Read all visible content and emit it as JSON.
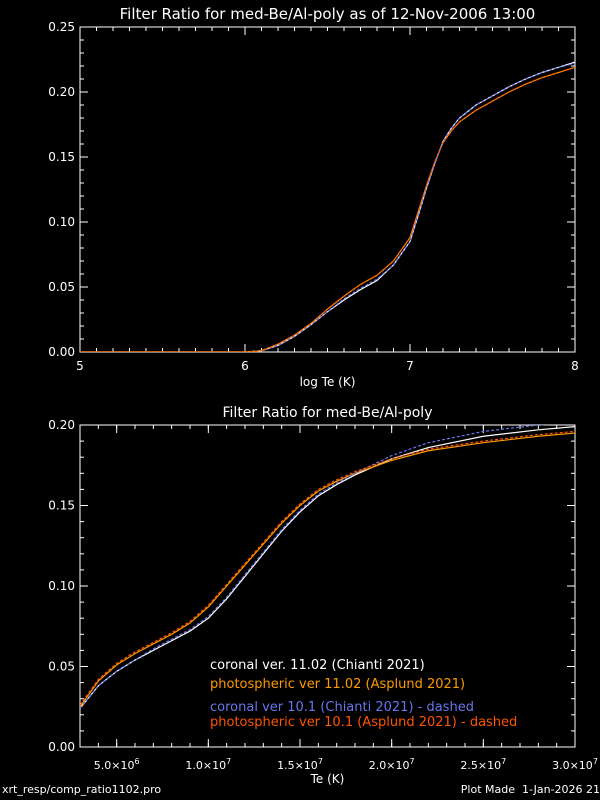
{
  "chart_data": [
    {
      "type": "line",
      "title": "Filter Ratio for med-Be/Al-poly as of 12-Nov-2006 13:00",
      "xlabel": "log Te (K)",
      "ylabel": "",
      "xlim": [
        5,
        8
      ],
      "ylim": [
        0,
        0.25
      ],
      "x_ticks": [
        "5",
        "6",
        "7",
        "8"
      ],
      "y_ticks": [
        "0.00",
        "0.05",
        "0.10",
        "0.15",
        "0.20",
        "0.25"
      ],
      "grid": false,
      "series": [
        {
          "color": "#ffffff",
          "dashed": false,
          "x": [
            5.0,
            6.0,
            6.1,
            6.2,
            6.3,
            6.4,
            6.5,
            6.6,
            6.7,
            6.8,
            6.9,
            7.0,
            7.05,
            7.1,
            7.15,
            7.2,
            7.25,
            7.3,
            7.4,
            7.5,
            7.6,
            7.7,
            7.8,
            7.9,
            8.0
          ],
          "y": [
            0.0,
            0.0,
            0.001,
            0.005,
            0.012,
            0.021,
            0.031,
            0.04,
            0.048,
            0.055,
            0.067,
            0.085,
            0.105,
            0.126,
            0.145,
            0.162,
            0.172,
            0.18,
            0.19,
            0.197,
            0.204,
            0.21,
            0.215,
            0.219,
            0.223
          ]
        },
        {
          "color": "#ff9900",
          "dashed": false,
          "x": [
            5.0,
            6.0,
            6.1,
            6.2,
            6.3,
            6.4,
            6.5,
            6.6,
            6.7,
            6.8,
            6.9,
            7.0,
            7.05,
            7.1,
            7.15,
            7.2,
            7.25,
            7.3,
            7.4,
            7.5,
            7.6,
            7.7,
            7.8,
            7.9,
            8.0
          ],
          "y": [
            0.0,
            0.0,
            0.001,
            0.006,
            0.013,
            0.022,
            0.033,
            0.043,
            0.052,
            0.059,
            0.07,
            0.088,
            0.108,
            0.128,
            0.146,
            0.161,
            0.17,
            0.177,
            0.186,
            0.193,
            0.2,
            0.206,
            0.211,
            0.215,
            0.219
          ]
        },
        {
          "color": "#6677ee",
          "dashed": true,
          "x": [
            5.0,
            6.0,
            6.1,
            6.2,
            6.3,
            6.4,
            6.5,
            6.6,
            6.7,
            6.8,
            6.9,
            7.0,
            7.05,
            7.1,
            7.15,
            7.2,
            7.25,
            7.3,
            7.4,
            7.5,
            7.6,
            7.7,
            7.8,
            7.9,
            8.0
          ],
          "y": [
            0.0,
            0.0,
            0.001,
            0.005,
            0.012,
            0.021,
            0.031,
            0.041,
            0.049,
            0.056,
            0.067,
            0.085,
            0.105,
            0.126,
            0.145,
            0.162,
            0.172,
            0.18,
            0.19,
            0.197,
            0.204,
            0.21,
            0.215,
            0.219,
            0.222
          ]
        },
        {
          "color": "#ff5500",
          "dashed": true,
          "x": [
            5.0,
            6.0,
            6.1,
            6.2,
            6.3,
            6.4,
            6.5,
            6.6,
            6.7,
            6.8,
            6.9,
            7.0,
            7.05,
            7.1,
            7.15,
            7.2,
            7.25,
            7.3,
            7.4,
            7.5,
            7.6,
            7.7,
            7.8,
            7.9,
            8.0
          ],
          "y": [
            0.0,
            0.0,
            0.001,
            0.006,
            0.013,
            0.022,
            0.033,
            0.043,
            0.052,
            0.059,
            0.07,
            0.088,
            0.108,
            0.128,
            0.146,
            0.161,
            0.17,
            0.177,
            0.186,
            0.193,
            0.2,
            0.206,
            0.211,
            0.215,
            0.219
          ]
        }
      ]
    },
    {
      "type": "line",
      "title": "Filter Ratio for med-Be/Al-poly",
      "xlabel": "Te (K)",
      "ylabel": "",
      "xlim": [
        3000000,
        30000000
      ],
      "ylim": [
        0,
        0.2
      ],
      "x_ticks": [
        {
          "value": 5000000,
          "mant": "5.0",
          "exp": "6"
        },
        {
          "value": 10000000,
          "mant": "1.0",
          "exp": "7"
        },
        {
          "value": 15000000,
          "mant": "1.5",
          "exp": "7"
        },
        {
          "value": 20000000,
          "mant": "2.0",
          "exp": "7"
        },
        {
          "value": 25000000,
          "mant": "2.5",
          "exp": "7"
        },
        {
          "value": 30000000,
          "mant": "3.0",
          "exp": "7"
        }
      ],
      "x_tick_times": "×10",
      "y_ticks": [
        "0.00",
        "0.05",
        "0.10",
        "0.15",
        "0.20"
      ],
      "grid": false,
      "legend_position": "bottom-right",
      "legend": [
        {
          "text": "coronal ver. 11.02 (Chianti 2021)",
          "color": "#ffffff"
        },
        {
          "text": "photospheric ver 11.02 (Asplund 2021)",
          "color": "#ff9900"
        },
        {
          "text": "coronal ver 10.1 (Chianti 2021) - dashed",
          "color": "#6677ee"
        },
        {
          "text": "photospheric ver 10.1 (Asplund 2021) - dashed",
          "color": "#ff5500"
        }
      ],
      "series": [
        {
          "color": "#ffffff",
          "dashed": false,
          "x": [
            3000000,
            4000000,
            5000000,
            6000000,
            7000000,
            8000000,
            9000000,
            10000000,
            11000000,
            12000000,
            13000000,
            14000000,
            15000000,
            16000000,
            17000000,
            18000000,
            20000000,
            22000000,
            25000000,
            28000000,
            30000000
          ],
          "y": [
            0.024,
            0.038,
            0.047,
            0.054,
            0.06,
            0.066,
            0.072,
            0.08,
            0.092,
            0.106,
            0.12,
            0.134,
            0.146,
            0.156,
            0.163,
            0.169,
            0.179,
            0.186,
            0.193,
            0.197,
            0.199
          ]
        },
        {
          "color": "#ff9900",
          "dashed": false,
          "x": [
            3000000,
            4000000,
            5000000,
            6000000,
            7000000,
            8000000,
            9000000,
            10000000,
            11000000,
            12000000,
            13000000,
            14000000,
            15000000,
            16000000,
            17000000,
            18000000,
            20000000,
            22000000,
            25000000,
            28000000,
            30000000
          ],
          "y": [
            0.025,
            0.041,
            0.051,
            0.058,
            0.064,
            0.07,
            0.077,
            0.087,
            0.1,
            0.113,
            0.126,
            0.139,
            0.15,
            0.159,
            0.165,
            0.17,
            0.178,
            0.184,
            0.189,
            0.193,
            0.195
          ]
        },
        {
          "color": "#6677ee",
          "dashed": true,
          "x": [
            3000000,
            4000000,
            5000000,
            6000000,
            7000000,
            8000000,
            9000000,
            10000000,
            11000000,
            12000000,
            13000000,
            14000000,
            15000000,
            16000000,
            17000000,
            18000000,
            20000000,
            22000000,
            25000000,
            28000000,
            30000000
          ],
          "y": [
            0.024,
            0.038,
            0.047,
            0.054,
            0.061,
            0.067,
            0.073,
            0.081,
            0.093,
            0.107,
            0.121,
            0.135,
            0.147,
            0.157,
            0.164,
            0.17,
            0.181,
            0.189,
            0.196,
            0.2,
            0.201
          ]
        },
        {
          "color": "#ff5500",
          "dashed": true,
          "x": [
            3000000,
            4000000,
            5000000,
            6000000,
            7000000,
            8000000,
            9000000,
            10000000,
            11000000,
            12000000,
            13000000,
            14000000,
            15000000,
            16000000,
            17000000,
            18000000,
            20000000,
            22000000,
            25000000,
            28000000,
            30000000
          ],
          "y": [
            0.026,
            0.042,
            0.052,
            0.059,
            0.065,
            0.071,
            0.078,
            0.088,
            0.101,
            0.114,
            0.127,
            0.14,
            0.151,
            0.16,
            0.166,
            0.171,
            0.179,
            0.185,
            0.19,
            0.194,
            0.196
          ]
        }
      ]
    }
  ],
  "footer": {
    "left": "xrt_resp/comp_ratio1102.pro",
    "right": "Plot Made  1-Jan-2026 21"
  }
}
